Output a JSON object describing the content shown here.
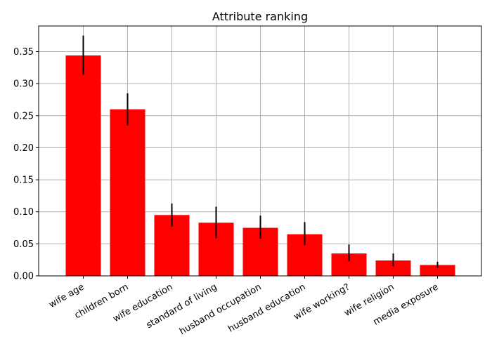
{
  "chart_data": {
    "type": "bar",
    "title": "Attribute ranking",
    "xlabel": "",
    "ylabel": "",
    "categories": [
      "wife age",
      "children born",
      "wife education",
      "standard of living",
      "husband occupation",
      "husband education",
      "wife working?",
      "wife religion",
      "media exposure"
    ],
    "values": [
      0.344,
      0.26,
      0.095,
      0.083,
      0.075,
      0.065,
      0.035,
      0.024,
      0.017
    ],
    "error_low": [
      0.314,
      0.235,
      0.077,
      0.059,
      0.058,
      0.048,
      0.023,
      0.015,
      0.013
    ],
    "error_high": [
      0.375,
      0.285,
      0.113,
      0.108,
      0.094,
      0.084,
      0.049,
      0.035,
      0.022
    ],
    "ylim": [
      0,
      0.39
    ],
    "yticks": [
      "0.00",
      "0.05",
      "0.10",
      "0.15",
      "0.20",
      "0.25",
      "0.30",
      "0.35"
    ],
    "ytick_values": [
      0,
      0.05,
      0.1,
      0.15,
      0.2,
      0.25,
      0.3,
      0.35
    ],
    "grid": true,
    "bar_color": "#ff0000",
    "error_color": "#000000",
    "grid_color": "#b0b0b0"
  }
}
